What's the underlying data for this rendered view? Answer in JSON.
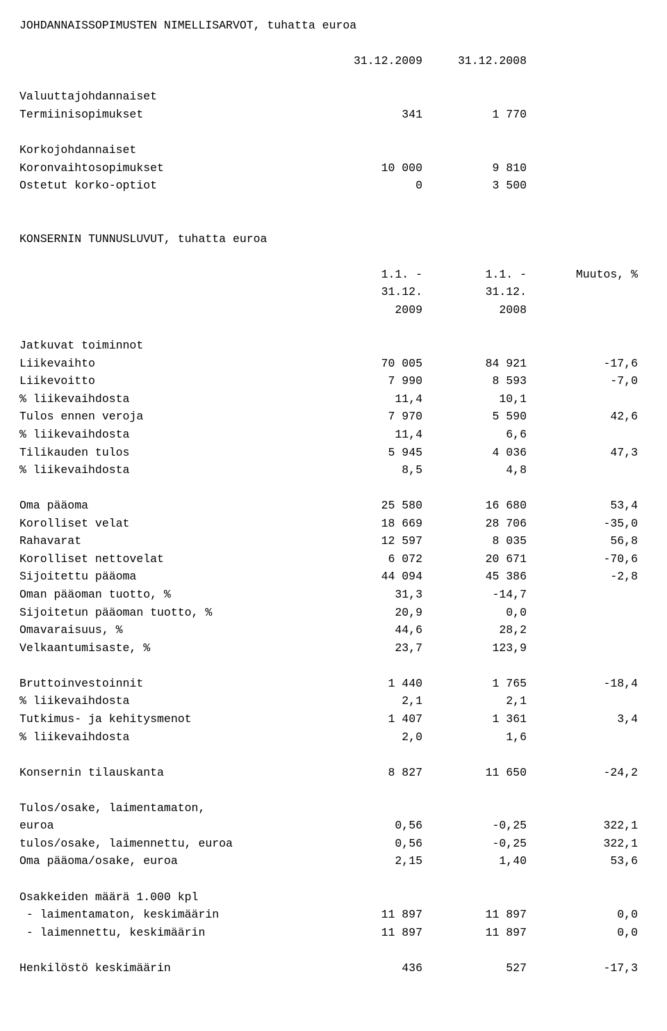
{
  "sec1": {
    "title": "JOHDANNAISSOPIMUSTEN NIMELLISARVOT, tuhatta euroa",
    "h1": "31.12.2009",
    "h2": "31.12.2008",
    "r1": {
      "l": "Valuuttajohdannaiset"
    },
    "r2": {
      "l": "Termiinisopimukset",
      "c1": "341",
      "c2": "1 770"
    },
    "r3": {
      "l": "Korkojohdannaiset"
    },
    "r4": {
      "l": "Koronvaihtosopimukset",
      "c1": "10 000",
      "c2": "9 810"
    },
    "r5": {
      "l": "Ostetut korko-optiot",
      "c1": "0",
      "c2": "3 500"
    }
  },
  "sec2": {
    "title": "KONSERNIN TUNNUSLUVUT, tuhatta euroa",
    "h1a": "1.1. -",
    "h1b": "31.12.",
    "h1c": "2009",
    "h2a": "1.1. -",
    "h2b": "31.12.",
    "h2c": "2008",
    "h3a": "Muutos, %",
    "g1": {
      "l": "Jatkuvat toiminnot"
    },
    "g1r1": {
      "l": "Liikevaihto",
      "c1": "70 005",
      "c2": "84 921",
      "c3": "-17,6"
    },
    "g1r2": {
      "l": "Liikevoitto",
      "c1": "7 990",
      "c2": "8 593",
      "c3": "-7,0"
    },
    "g1r3": {
      "l": "% liikevaihdosta",
      "c1": "11,4",
      "c2": "10,1"
    },
    "g1r4": {
      "l": "Tulos ennen veroja",
      "c1": "7 970",
      "c2": "5 590",
      "c3": "42,6"
    },
    "g1r5": {
      "l": "% liikevaihdosta",
      "c1": "11,4",
      "c2": "6,6"
    },
    "g1r6": {
      "l": "Tilikauden tulos",
      "c1": "5 945",
      "c2": "4 036",
      "c3": "47,3"
    },
    "g1r7": {
      "l": "% liikevaihdosta",
      "c1": "8,5",
      "c2": "4,8"
    },
    "g2r1": {
      "l": "Oma pääoma",
      "c1": "25 580",
      "c2": "16 680",
      "c3": "53,4"
    },
    "g2r2": {
      "l": "Korolliset velat",
      "c1": "18 669",
      "c2": "28 706",
      "c3": "-35,0"
    },
    "g2r3": {
      "l": "Rahavarat",
      "c1": "12 597",
      "c2": "8 035",
      "c3": "56,8"
    },
    "g2r4": {
      "l": "Korolliset nettovelat",
      "c1": "6 072",
      "c2": "20 671",
      "c3": "-70,6"
    },
    "g2r5": {
      "l": "Sijoitettu pääoma",
      "c1": "44 094",
      "c2": "45 386",
      "c3": "-2,8"
    },
    "g2r6": {
      "l": "Oman pääoman tuotto, %",
      "c1": "31,3",
      "c2": "-14,7"
    },
    "g2r7": {
      "l": "Sijoitetun pääoman tuotto, %",
      "c1": "20,9",
      "c2": "0,0"
    },
    "g2r8": {
      "l": "Omavaraisuus, %",
      "c1": "44,6",
      "c2": "28,2"
    },
    "g2r9": {
      "l": "Velkaantumisaste, %",
      "c1": "23,7",
      "c2": "123,9"
    },
    "g3r1": {
      "l": "Bruttoinvestoinnit",
      "c1": "1 440",
      "c2": "1 765",
      "c3": "-18,4"
    },
    "g3r2": {
      "l": "% liikevaihdosta",
      "c1": "2,1",
      "c2": "2,1"
    },
    "g3r3": {
      "l": "Tutkimus- ja kehitysmenot",
      "c1": "1 407",
      "c2": "1 361",
      "c3": "3,4"
    },
    "g3r4": {
      "l": "% liikevaihdosta",
      "c1": "2,0",
      "c2": "1,6"
    },
    "g4r1": {
      "l": "Konsernin tilauskanta",
      "c1": "8 827",
      "c2": "11 650",
      "c3": "-24,2"
    },
    "g5r0": {
      "l": "Tulos/osake, laimentamaton,"
    },
    "g5r1": {
      "l": "euroa",
      "c1": "0,56",
      "c2": "-0,25",
      "c3": "322,1"
    },
    "g5r2": {
      "l": "tulos/osake, laimennettu, euroa",
      "c1": "0,56",
      "c2": "-0,25",
      "c3": "322,1"
    },
    "g5r3": {
      "l": "Oma pääoma/osake, euroa",
      "c1": "2,15",
      "c2": "1,40",
      "c3": "53,6"
    },
    "g6r0": {
      "l": "Osakkeiden määrä 1.000 kpl"
    },
    "g6r1": {
      "l": " - laimentamaton, keskimäärin",
      "c1": "11 897",
      "c2": "11 897",
      "c3": "0,0"
    },
    "g6r2": {
      "l": " - laimennettu, keskimäärin",
      "c1": "11 897",
      "c2": "11 897",
      "c3": "0,0"
    },
    "g7r1": {
      "l": "Henkilöstö keskimäärin",
      "c1": "436",
      "c2": "527",
      "c3": "-17,3"
    }
  }
}
